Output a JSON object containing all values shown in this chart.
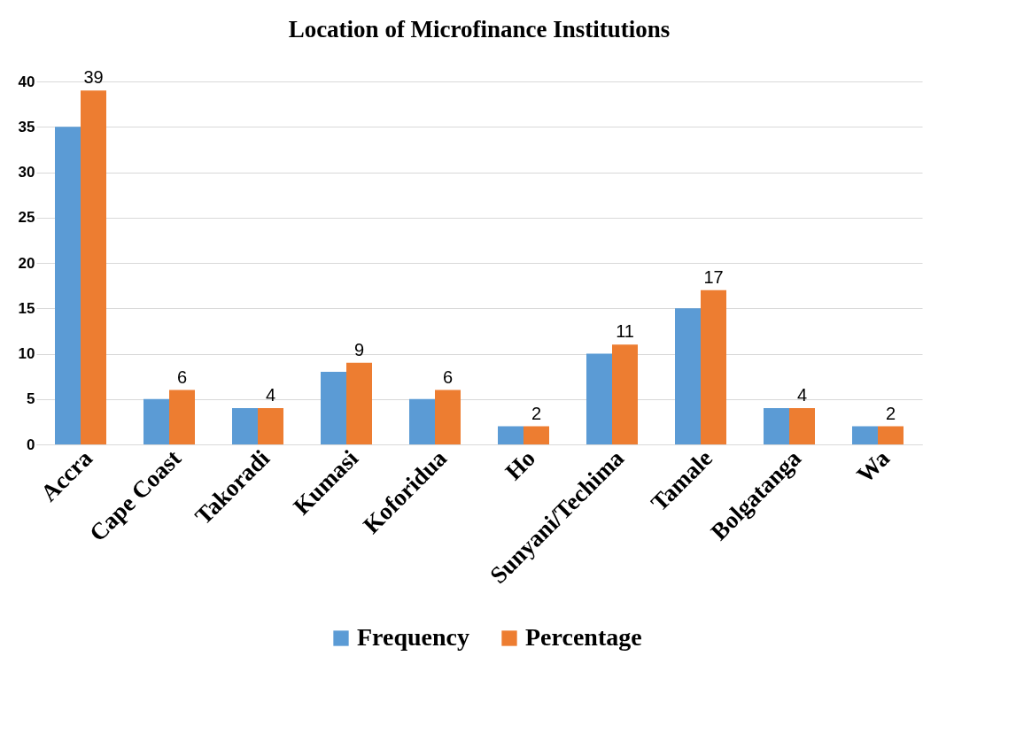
{
  "chart_data": {
    "type": "bar",
    "title": "Location of Microfinance Institutions",
    "categories": [
      "Accra",
      "Cape Coast",
      "Takoradi",
      "Kumasi",
      "Koforidua",
      "Ho",
      "Sunyani/Techima",
      "Tamale",
      "Bolgatanga",
      "Wa"
    ],
    "series": [
      {
        "name": "Frequency",
        "color": "#5b9bd5",
        "values": [
          35,
          5,
          4,
          8,
          5,
          2,
          10,
          15,
          4,
          2
        ]
      },
      {
        "name": "Percentage",
        "color": "#ed7d31",
        "values": [
          39,
          6,
          4,
          9,
          6,
          2,
          11,
          17,
          4,
          2
        ],
        "value_labels": [
          "39",
          "6",
          "4",
          "9",
          "6",
          "2",
          "11",
          "17",
          "4",
          "2"
        ]
      }
    ],
    "ylim": [
      0,
      40
    ],
    "yticks": [
      0,
      5,
      10,
      15,
      20,
      25,
      30,
      35,
      40
    ],
    "grid": "y",
    "legend": "bottom"
  }
}
